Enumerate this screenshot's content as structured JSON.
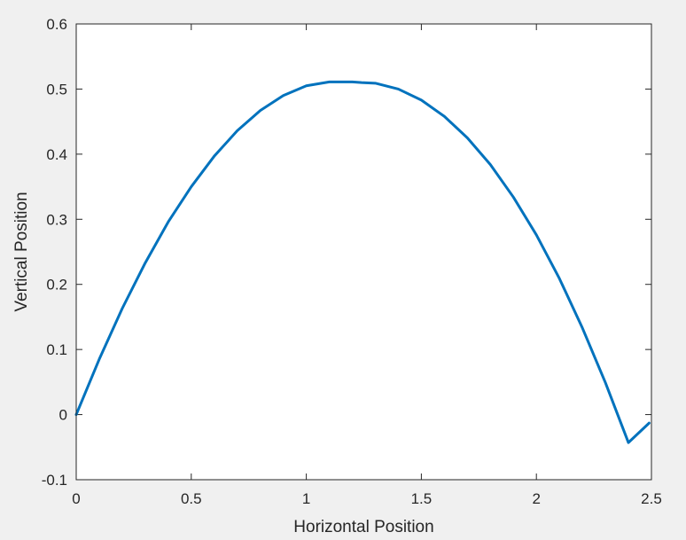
{
  "colors": {
    "figure_background": "#f0f0f0",
    "axes_background": "#ffffff",
    "axes": "#262626",
    "series": "#0072bd"
  },
  "chart_data": {
    "type": "line",
    "title": "",
    "xlabel": "Horizontal Position",
    "ylabel": "Vertical Position",
    "xlim": [
      0,
      2.5
    ],
    "ylim": [
      -0.1,
      0.6
    ],
    "xticks": [
      0,
      0.5,
      1,
      1.5,
      2,
      2.5
    ],
    "xtick_labels": [
      "0",
      "0.5",
      "1",
      "1.5",
      "2",
      "2.5"
    ],
    "yticks": [
      -0.1,
      0,
      0.1,
      0.2,
      0.3,
      0.4,
      0.5,
      0.6
    ],
    "ytick_labels": [
      "-0.1",
      "0",
      "0.1",
      "0.2",
      "0.3",
      "0.4",
      "0.5",
      "0.6"
    ],
    "grid": false,
    "legend": "none",
    "series": [
      {
        "x": [
          0,
          0.1,
          0.2,
          0.3,
          0.4,
          0.5,
          0.6,
          0.7,
          0.8,
          0.9,
          1.0,
          1.1,
          1.2,
          1.24,
          1.3,
          1.4,
          1.5,
          1.6,
          1.7,
          1.8,
          1.9,
          2.0,
          2.1,
          2.2,
          2.3,
          2.4,
          2.49
        ],
        "y": [
          0,
          0.085,
          0.163,
          0.233,
          0.296,
          0.35,
          0.397,
          0.436,
          0.467,
          0.49,
          0.505,
          0.511,
          0.511,
          0.51,
          0.509,
          0.5,
          0.483,
          0.458,
          0.425,
          0.384,
          0.334,
          0.276,
          0.209,
          0.133,
          0.049,
          -0.043,
          -0.013
        ]
      }
    ]
  }
}
